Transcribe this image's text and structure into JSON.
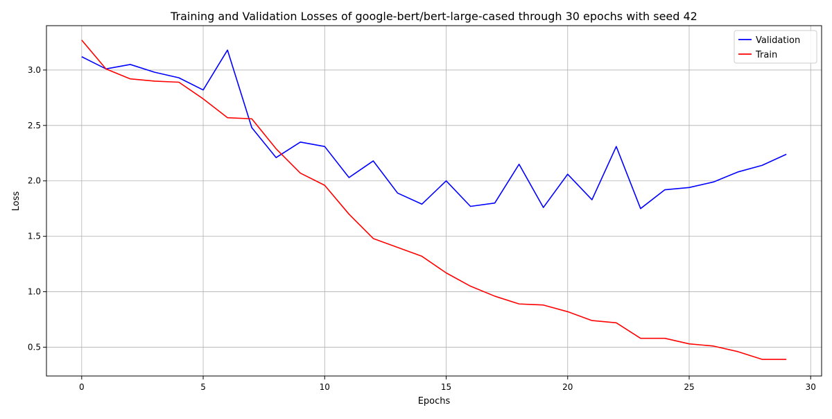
{
  "chart_data": {
    "type": "line",
    "title": "Training and Validation Losses of google-bert/bert-large-cased through 30 epochs with seed 42",
    "xlabel": "Epochs",
    "ylabel": "Loss",
    "xlim": [
      -1.45,
      30.45
    ],
    "ylim": [
      0.24,
      3.4
    ],
    "x_ticks": [
      0,
      5,
      10,
      15,
      20,
      25,
      30
    ],
    "y_ticks": [
      0.5,
      1.0,
      1.5,
      2.0,
      2.5,
      3.0
    ],
    "x_tick_labels": [
      "0",
      "5",
      "10",
      "15",
      "20",
      "25",
      "30"
    ],
    "y_tick_labels": [
      "0.5",
      "1.0",
      "1.5",
      "2.0",
      "2.5",
      "3.0"
    ],
    "grid": true,
    "legend_position": "top-right",
    "x": [
      0,
      1,
      2,
      3,
      4,
      5,
      6,
      7,
      8,
      9,
      10,
      11,
      12,
      13,
      14,
      15,
      16,
      17,
      18,
      19,
      20,
      21,
      22,
      23,
      24,
      25,
      26,
      27,
      28,
      29
    ],
    "series": [
      {
        "name": "Validation",
        "color": "#0000ff",
        "values": [
          3.12,
          3.01,
          3.05,
          2.98,
          2.93,
          2.82,
          3.18,
          2.48,
          2.21,
          2.35,
          2.31,
          2.03,
          2.18,
          1.89,
          1.79,
          2.0,
          1.77,
          1.8,
          2.15,
          1.76,
          2.06,
          1.83,
          2.31,
          1.75,
          1.92,
          1.94,
          1.99,
          2.08,
          2.14,
          2.24
        ]
      },
      {
        "name": "Train",
        "color": "#ff0000",
        "values": [
          3.27,
          3.01,
          2.92,
          2.9,
          2.89,
          2.74,
          2.57,
          2.56,
          2.29,
          2.07,
          1.96,
          1.7,
          1.48,
          1.4,
          1.32,
          1.17,
          1.05,
          0.96,
          0.89,
          0.88,
          0.82,
          0.74,
          0.72,
          0.58,
          0.58,
          0.53,
          0.51,
          0.46,
          0.39,
          0.39
        ]
      }
    ]
  }
}
